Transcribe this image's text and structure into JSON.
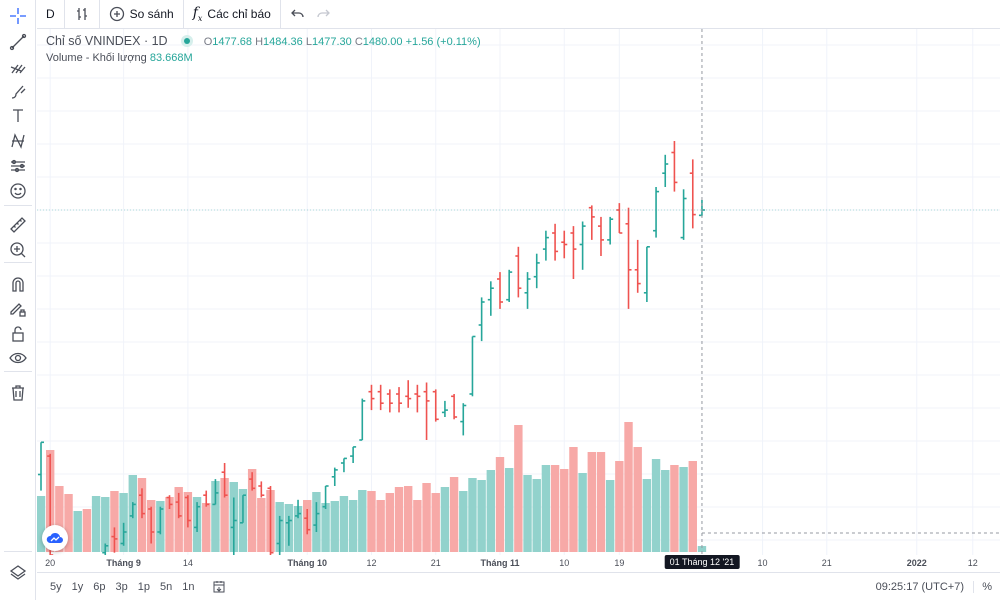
{
  "toolbar": {
    "interval": "D",
    "compare_label": "So sánh",
    "indicators_label": "Các chỉ báo",
    "icons": [
      "bar-style-icon",
      "compare-plus-icon",
      "fx-icon",
      "undo-icon",
      "redo-icon"
    ]
  },
  "left_tools": [
    "crosshair-icon",
    "trend-line-icon",
    "pitchfork-icon",
    "brush-icon",
    "text-icon",
    "pattern-icon",
    "prediction-icon",
    "emoji-icon",
    "ruler-icon",
    "zoom-in-icon",
    "magnet-icon",
    "lock-drawing-icon",
    "lock-icon",
    "eye-icon",
    "trash-icon",
    "layers-icon"
  ],
  "legend": {
    "symbol": "Chỉ số VNINDEX · 1D",
    "o_label": "O",
    "o": "1477.68",
    "h_label": "H",
    "h": "1484.36",
    "l_label": "L",
    "l": "1477.30",
    "c_label": "C",
    "c": "1480.00",
    "change": "+1.56 (+0.11%)",
    "volume_label": "Volume - Khối lượng",
    "volume": "83.668M"
  },
  "colors": {
    "up": "#26a69a",
    "down": "#ef5350",
    "vol_up": "#92d2cc",
    "vol_down": "#f7a9a7"
  },
  "chart_data": {
    "type": "ohlc",
    "symbol": "VNINDEX",
    "interval": "1D",
    "columns": [
      "open",
      "high",
      "low",
      "close",
      "volume_M"
    ],
    "bars": [
      [
        1365,
        1379,
        1358,
        1379,
        784
      ],
      [
        1373,
        1374,
        1329,
        1330,
        1428
      ],
      [
        1327,
        1329,
        1318,
        1321,
        924
      ],
      [
        1324,
        1327,
        1316,
        1318,
        812
      ],
      [
        1317,
        1326,
        1314,
        1324,
        574
      ],
      [
        1325,
        1328,
        1317,
        1319,
        602
      ],
      [
        1318,
        1327,
        1315,
        1325,
        784
      ],
      [
        1331,
        1335,
        1330,
        1334,
        770
      ],
      [
        1338,
        1342,
        1331,
        1337,
        854
      ],
      [
        1335,
        1344,
        1334,
        1340,
        826
      ],
      [
        1347,
        1353,
        1346,
        1352,
        1078
      ],
      [
        1356,
        1359,
        1346,
        1348,
        1036
      ],
      [
        1350,
        1351,
        1335,
        1340,
        728
      ],
      [
        1340,
        1351,
        1339,
        1350,
        714
      ],
      [
        1355,
        1356,
        1350,
        1352,
        770
      ],
      [
        1353,
        1357,
        1346,
        1347,
        910
      ],
      [
        1355,
        1356,
        1342,
        1345,
        840
      ],
      [
        1342,
        1353,
        1340,
        1351,
        770
      ],
      [
        1356,
        1358,
        1351,
        1352,
        686
      ],
      [
        1352,
        1363,
        1352,
        1357,
        994
      ],
      [
        1366,
        1370,
        1355,
        1356,
        1036
      ],
      [
        1342,
        1355,
        1330,
        1345,
        980
      ],
      [
        1344,
        1356,
        1344,
        1356,
        882
      ],
      [
        1363,
        1366,
        1358,
        1359,
        1162
      ],
      [
        1360,
        1362,
        1355,
        1356,
        756
      ],
      [
        1359,
        1360,
        1330,
        1331,
        868
      ],
      [
        1335,
        1347,
        1330,
        1345,
        700
      ],
      [
        1344,
        1347,
        1334,
        1345,
        672
      ],
      [
        1347,
        1354,
        1346,
        1348,
        644
      ],
      [
        1346,
        1350,
        1339,
        1341,
        728
      ],
      [
        1343,
        1353,
        1340,
        1348,
        840
      ],
      [
        1351,
        1360,
        1350,
        1360,
        686
      ],
      [
        1364,
        1368,
        1360,
        1367,
        714
      ],
      [
        1370,
        1372,
        1366,
        1372,
        784
      ],
      [
        1373,
        1377,
        1370,
        1377,
        728
      ],
      [
        1380,
        1398,
        1380,
        1397,
        868
      ],
      [
        1401,
        1404,
        1393,
        1398,
        854
      ],
      [
        1401,
        1404,
        1393,
        1396,
        728
      ],
      [
        1400,
        1402,
        1392,
        1396,
        826
      ],
      [
        1400,
        1403,
        1392,
        1396,
        910
      ],
      [
        1399,
        1406,
        1394,
        1398,
        924
      ],
      [
        1400,
        1404,
        1392,
        1399,
        728
      ],
      [
        1401,
        1405,
        1380,
        1397,
        966
      ],
      [
        1401,
        1402,
        1388,
        1389,
        826
      ],
      [
        1392,
        1397,
        1390,
        1393,
        910
      ],
      [
        1399,
        1400,
        1389,
        1390,
        1050
      ],
      [
        1388,
        1396,
        1382,
        1395,
        854
      ],
      [
        1400,
        1425,
        1399,
        1425,
        1036
      ],
      [
        1430,
        1442,
        1423,
        1440,
        1008
      ],
      [
        1441,
        1449,
        1434,
        1446,
        1148
      ],
      [
        1450,
        1453,
        1437,
        1440,
        1330
      ],
      [
        1441,
        1454,
        1440,
        1453,
        1176
      ],
      [
        1460,
        1464,
        1442,
        1446,
        1778
      ],
      [
        1444,
        1453,
        1437,
        1450,
        1078
      ],
      [
        1451,
        1461,
        1446,
        1457,
        1022
      ],
      [
        1463,
        1471,
        1458,
        1468,
        1218
      ],
      [
        1470,
        1474,
        1458,
        1462,
        1218
      ],
      [
        1466,
        1471,
        1459,
        1465,
        1162
      ],
      [
        1470,
        1473,
        1450,
        1463,
        1470
      ],
      [
        1465,
        1475,
        1454,
        1473,
        1106
      ],
      [
        1481,
        1482,
        1467,
        1477,
        1400
      ],
      [
        1473,
        1477,
        1460,
        1467,
        1400
      ],
      [
        1467,
        1477,
        1465,
        1476,
        1008
      ],
      [
        1480,
        1483,
        1470,
        1470,
        1274
      ],
      [
        1474,
        1481,
        1437,
        1454,
        1820
      ],
      [
        1454,
        1467,
        1444,
        1448,
        1470
      ],
      [
        1444,
        1464,
        1440,
        1464,
        1022
      ],
      [
        1471,
        1490,
        1468,
        1488,
        1302
      ],
      [
        1496,
        1504,
        1490,
        1500,
        1148
      ],
      [
        1505,
        1510,
        1488,
        1492,
        1218
      ],
      [
        1468,
        1489,
        1467,
        1485,
        1190
      ],
      [
        1496,
        1502,
        1472,
        1478,
        1274
      ],
      [
        1477.68,
        1484.36,
        1477.3,
        1480.0,
        83.668
      ]
    ],
    "last_price": 1480.0,
    "x_labels": [
      {
        "text": "20",
        "bar_index": 1
      },
      {
        "text": "Tháng 9",
        "bar_index": 9,
        "major": true
      },
      {
        "text": "14",
        "bar_index": 16
      },
      {
        "text": "Tháng 10",
        "bar_index": 29,
        "major": true
      },
      {
        "text": "12",
        "bar_index": 36
      },
      {
        "text": "21",
        "bar_index": 43
      },
      {
        "text": "Tháng 11",
        "bar_index": 50,
        "major": true
      },
      {
        "text": "10",
        "bar_index": 57
      },
      {
        "text": "19",
        "bar_index": 63
      },
      {
        "text": "10",
        "bar_index": 78.6
      },
      {
        "text": "21",
        "bar_index": 85.6
      },
      {
        "text": "2022",
        "bar_index": 95.4,
        "major": true
      },
      {
        "text": "12",
        "bar_index": 101.5
      }
    ],
    "crosshair_label": "01 Tháng 12 '21",
    "crosshair_bar_index": 72,
    "grid": true
  },
  "bottom": {
    "ranges": [
      "5y",
      "1y",
      "6p",
      "3p",
      "1p",
      "5n",
      "1n"
    ],
    "time": "09:25:17 (UTC+7)",
    "percent": "%"
  }
}
